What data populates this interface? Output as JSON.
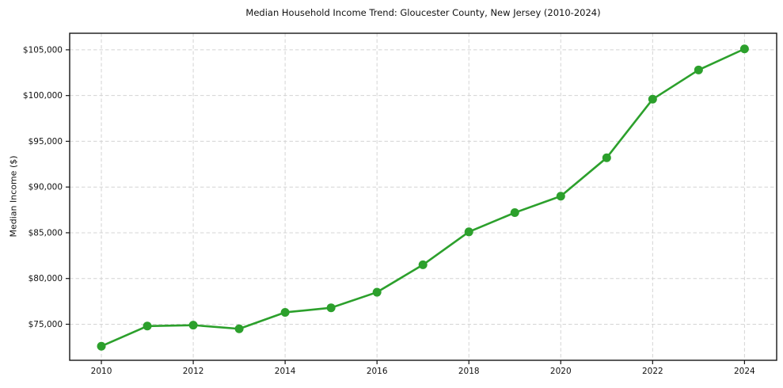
{
  "chart_data": {
    "type": "line",
    "title": "Median Household Income Trend: Gloucester County, New Jersey (2010-2024)",
    "xlabel": "",
    "ylabel": "Median Income ($)",
    "series": [
      {
        "name": "Median Household Income",
        "x": [
          2010,
          2011,
          2012,
          2013,
          2014,
          2015,
          2016,
          2017,
          2018,
          2019,
          2020,
          2021,
          2022,
          2023,
          2024
        ],
        "values": [
          72600,
          74800,
          74900,
          74500,
          76300,
          76800,
          78500,
          81500,
          85100,
          87200,
          89000,
          93200,
          99600,
          102800,
          105100
        ]
      }
    ],
    "xlim": [
      2009.31,
      2024.7
    ],
    "ylim": [
      71060,
      106810
    ],
    "xticks": [
      2010,
      2012,
      2014,
      2016,
      2018,
      2020,
      2022,
      2024
    ],
    "xtick_labels": [
      "2010",
      "2012",
      "2014",
      "2016",
      "2018",
      "2020",
      "2022",
      "2024"
    ],
    "yticks": [
      75000,
      80000,
      85000,
      90000,
      95000,
      100000,
      105000
    ],
    "ytick_labels": [
      "$75,000",
      "$80,000",
      "$85,000",
      "$90,000",
      "$95,000",
      "$100,000",
      "$105,000"
    ],
    "grid": true,
    "legend": "none",
    "colors": {
      "line": "#2ca02c",
      "marker": "#2ca02c",
      "grid": "#d4d4d4",
      "axis": "#151515",
      "background": "#ffffff"
    },
    "marker_style": "circle",
    "marker_radius": 5.5,
    "line_width": 2.6
  }
}
